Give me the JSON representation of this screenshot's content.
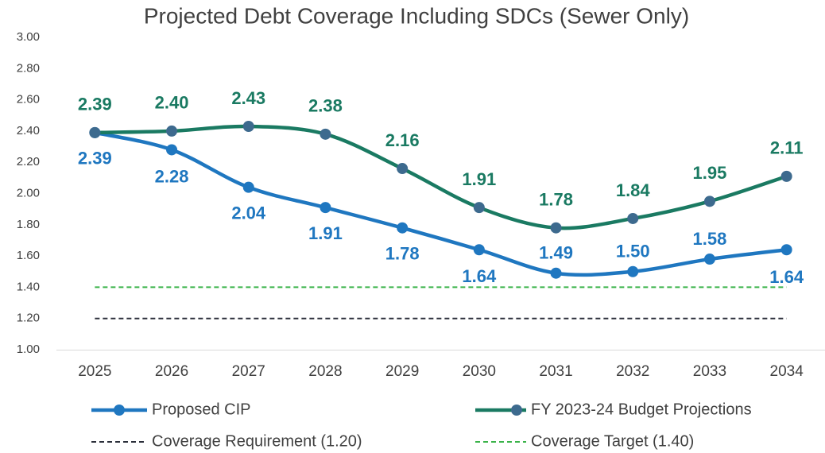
{
  "chart_data": {
    "type": "line",
    "title": "Projected Debt Coverage Including SDCs (Sewer Only)",
    "categories": [
      "2025",
      "2026",
      "2027",
      "2028",
      "2029",
      "2030",
      "2031",
      "2032",
      "2033",
      "2034"
    ],
    "ylim": [
      1,
      3
    ],
    "yticks": [
      {
        "value": 1,
        "label": "1.00"
      },
      {
        "value": 1.2,
        "label": "1.20"
      },
      {
        "value": 1.4,
        "label": "1.40"
      },
      {
        "value": 1.6,
        "label": "1.60"
      },
      {
        "value": 1.8,
        "label": "1.80"
      },
      {
        "value": 2,
        "label": "2.00"
      },
      {
        "value": 2.2,
        "label": "2.20"
      },
      {
        "value": 2.4,
        "label": "2.40"
      },
      {
        "value": 2.6,
        "label": "2.60"
      },
      {
        "value": 2.8,
        "label": "2.80"
      },
      {
        "value": 3,
        "label": "3.00"
      }
    ],
    "grid": false,
    "series": [
      {
        "name": "Proposed CIP",
        "color": "#1f77c0",
        "marker_color": "#1f77c0",
        "dashed": false,
        "values": [
          2.39,
          2.28,
          2.04,
          1.91,
          1.78,
          1.64,
          1.49,
          1.5,
          1.58,
          1.64
        ],
        "value_labels": [
          "2.39",
          "2.28",
          "2.04",
          "1.91",
          "1.78",
          "1.64",
          "1.49",
          "1.50",
          "1.58",
          "1.64"
        ]
      },
      {
        "name": "FY 2023-24 Budget Projections",
        "color": "#1a7a62",
        "marker_color": "#3d6a8e",
        "dashed": false,
        "values": [
          2.39,
          2.4,
          2.43,
          2.38,
          2.16,
          1.91,
          1.78,
          1.84,
          1.95,
          2.11
        ],
        "value_labels": [
          "2.39",
          "2.40",
          "2.43",
          "2.38",
          "2.16",
          "1.91",
          "1.78",
          "1.84",
          "1.95",
          "2.11"
        ]
      },
      {
        "name": "Coverage Requirement (1.20)",
        "color": "#2b2f3a",
        "dashed": true,
        "values": [
          1.2,
          1.2,
          1.2,
          1.2,
          1.2,
          1.2,
          1.2,
          1.2,
          1.2,
          1.2
        ]
      },
      {
        "name": "Coverage Target (1.40)",
        "color": "#3bb34a",
        "dashed": true,
        "values": [
          1.4,
          1.4,
          1.4,
          1.4,
          1.4,
          1.4,
          1.4,
          1.4,
          1.4,
          1.4
        ]
      }
    ]
  }
}
